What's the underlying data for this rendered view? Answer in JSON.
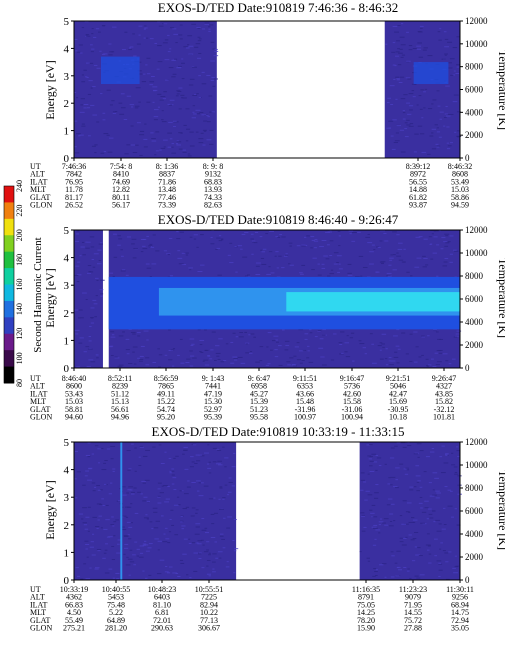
{
  "chart_data": [
    {
      "type": "heatmap",
      "title": "EXOS-D/TED   Date:910819  7:46:36 - 8:46:32",
      "ylabel": "Energy [eV]",
      "ylabel_right": "Temperature [K]",
      "ylim": [
        0,
        5
      ],
      "ylim_right": [
        0,
        12000
      ],
      "yticks": [
        "0",
        "1",
        "2",
        "3",
        "4",
        "5"
      ],
      "yticks_right": [
        "0",
        "2000",
        "4000",
        "6000",
        "8000",
        "10000",
        "12000"
      ],
      "data_segments": [
        [
          0,
          0.37
        ],
        [
          0.805,
          1.0
        ]
      ],
      "features": [
        {
          "kind": "warm_patch",
          "x": [
            0.07,
            0.17
          ],
          "y": [
            2.7,
            3.7
          ],
          "level": "medium-blue"
        },
        {
          "kind": "warm_patch",
          "x": [
            0.88,
            0.97
          ],
          "y": [
            2.7,
            3.5
          ],
          "level": "medium-blue"
        }
      ],
      "row_labels": [
        "UT",
        "ALT",
        "ILAT",
        "MLT",
        "GLAT",
        "GLON"
      ],
      "columns": [
        {
          "values": [
            "7:46:36",
            "7842",
            "76.95",
            "11.78",
            "81.17",
            "26.52"
          ]
        },
        {
          "values": [
            "7:54: 8",
            "8410",
            "74.69",
            "12.82",
            "80.11",
            "56.17"
          ]
        },
        {
          "values": [
            "8: 1:36",
            "8837",
            "71.86",
            "13.48",
            "77.46",
            "73.39"
          ]
        },
        {
          "values": [
            "8: 9: 8",
            "9132",
            "68.83",
            "13.93",
            "74.33",
            "82.63"
          ]
        },
        {
          "values": [
            "8:39:12",
            "8972",
            "56.55",
            "14.88",
            "61.82",
            "93.87"
          ]
        },
        {
          "values": [
            "8:46:32",
            "8608",
            "53.49",
            "15.03",
            "58.86",
            "94.59"
          ]
        }
      ]
    },
    {
      "type": "heatmap",
      "title": "EXOS-D/TED  Date:910819  8:46:40 - 9:26:47",
      "ylabel": "Energy [eV]",
      "ylabel_right": "Temperature [K]",
      "ylim": [
        0,
        5
      ],
      "ylim_right": [
        0,
        12000
      ],
      "yticks": [
        "0",
        "1",
        "2",
        "3",
        "4",
        "5"
      ],
      "yticks_right": [
        "0",
        "2000",
        "4000",
        "6000",
        "8000",
        "10000",
        "12000"
      ],
      "data_segments": [
        [
          0,
          0.075
        ],
        [
          0.09,
          1.0
        ]
      ],
      "features": [
        {
          "kind": "band",
          "x": [
            0.09,
            1.0
          ],
          "y": [
            1.4,
            3.3
          ],
          "level": "blue"
        },
        {
          "kind": "band",
          "x": [
            0.22,
            1.0
          ],
          "y": [
            1.9,
            2.9
          ],
          "level": "light-blue"
        },
        {
          "kind": "band",
          "x": [
            0.55,
            1.0
          ],
          "y": [
            2.05,
            2.75
          ],
          "level": "cyan"
        }
      ],
      "row_labels": [
        "UT",
        "ALT",
        "ILAT",
        "MLT",
        "GLAT",
        "GLON"
      ],
      "columns": [
        {
          "values": [
            "8:46:40",
            "8600",
            "53.43",
            "15.03",
            "58.81",
            "94.60"
          ]
        },
        {
          "values": [
            "8:52:11",
            "8239",
            "51.12",
            "15.13",
            "56.61",
            "94.96"
          ]
        },
        {
          "values": [
            "8:56:59",
            "7865",
            "49.11",
            "15.22",
            "54.74",
            "95.20"
          ]
        },
        {
          "values": [
            "9: 1:43",
            "7441",
            "47.19",
            "15.30",
            "52.97",
            "95.39"
          ]
        },
        {
          "values": [
            "9: 6:47",
            "6958",
            "45.27",
            "15.39",
            "51.23",
            "95.58"
          ]
        },
        {
          "values": [
            "9:11:51",
            "6353",
            "43.66",
            "15.48",
            "-31.96",
            "100.97"
          ]
        },
        {
          "values": [
            "9:16:47",
            "5736",
            "42.60",
            "15.58",
            "-31.06",
            "100.94"
          ]
        },
        {
          "values": [
            "9:21:51",
            "5046",
            "42.47",
            "15.69",
            "-30.95",
            "10.18"
          ]
        },
        {
          "values": [
            "9:26:47",
            "4327",
            "43.85",
            "15.82",
            "-32.12",
            "101.81"
          ]
        }
      ],
      "colorbar": {
        "label": "Second Harmonic Current",
        "ticks": [
          "80",
          "100",
          "120",
          "140",
          "160",
          "180",
          "200",
          "220",
          "240"
        ],
        "range": [
          80,
          240
        ]
      }
    },
    {
      "type": "heatmap",
      "title": "EXOS-D/TED  Date:910819  10:33:19 - 11:33:15",
      "ylabel": "Energy [eV]",
      "ylabel_right": "Temperature [K]",
      "ylim": [
        0,
        5
      ],
      "ylim_right": [
        0,
        12000
      ],
      "yticks": [
        "0",
        "1",
        "2",
        "3",
        "4",
        "5"
      ],
      "yticks_right": [
        "0",
        "2000",
        "4000",
        "6000",
        "8000",
        "10000",
        "12000"
      ],
      "data_segments": [
        [
          0,
          0.42
        ],
        [
          0.74,
          1.0
        ]
      ],
      "features": [
        {
          "kind": "streak",
          "x": [
            0.12,
            0.125
          ],
          "y": [
            0,
            5
          ],
          "level": "light-blue"
        }
      ],
      "row_labels": [
        "UT",
        "ALT",
        "ILAT",
        "MLT",
        "GLAT",
        "GLON"
      ],
      "columns": [
        {
          "values": [
            "10:33:19",
            "4362",
            "66.83",
            "4.50",
            "55.49",
            "275.21"
          ]
        },
        {
          "values": [
            "10:40:55",
            "5453",
            "75.48",
            "5.22",
            "64.89",
            "281.20"
          ]
        },
        {
          "values": [
            "10:48:23",
            "6403",
            "81.10",
            "6.81",
            "72.01",
            "290.63"
          ]
        },
        {
          "values": [
            "10:55:51",
            "7225",
            "82.94",
            "10.22",
            "77.13",
            "306.67"
          ]
        },
        {
          "values": [
            "11:16:35",
            "8791",
            "75.05",
            "14.25",
            "78.20",
            "15.90"
          ]
        },
        {
          "values": [
            "11:23:23",
            "9079",
            "71.95",
            "14.55",
            "75.72",
            "27.88"
          ]
        },
        {
          "values": [
            "11:30:11",
            "9256",
            "68.94",
            "14.75",
            "72.94",
            "35.05"
          ]
        }
      ]
    }
  ],
  "colors": {
    "background": "#3a2fa0",
    "gap": "#ffffff",
    "blue": "#1f4fe0",
    "light_blue": "#2f93ee",
    "cyan": "#30d8f0"
  }
}
